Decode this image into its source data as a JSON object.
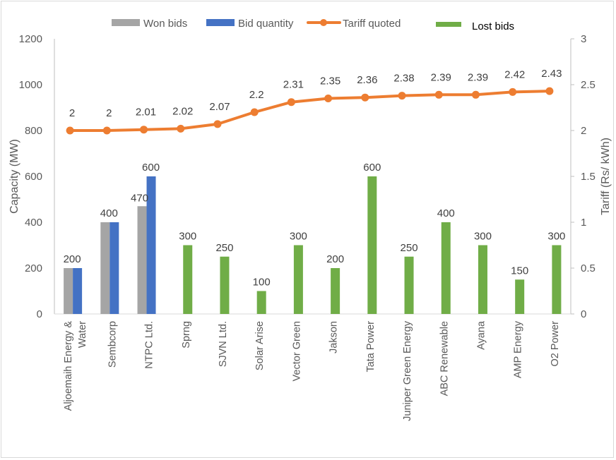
{
  "chart_data": {
    "type": "bar",
    "title": "",
    "categories": [
      "Aljoemaih Energy & Water",
      "Sembcorp",
      "NTPC Ltd.",
      "Sprng",
      "SJVN Ltd.",
      "Solar Arise",
      "Vector Green",
      "Jakson",
      "Tata Power",
      "Juniper Green Energy",
      "ABC Renewable",
      "Ayana",
      "AMP Energy",
      "O2 Power"
    ],
    "category_lines": [
      [
        "Aljoemaih Energy &",
        "Water"
      ],
      [
        "Sembcorp"
      ],
      [
        "NTPC Ltd."
      ],
      [
        "Sprng"
      ],
      [
        "SJVN Ltd."
      ],
      [
        "Solar Arise"
      ],
      [
        "Vector Green"
      ],
      [
        "Jakson"
      ],
      [
        "Tata Power"
      ],
      [
        "Juniper Green Energy"
      ],
      [
        "ABC Renewable"
      ],
      [
        "Ayana"
      ],
      [
        "AMP Energy"
      ],
      [
        "O2 Power"
      ]
    ],
    "series": [
      {
        "name": "Won bids",
        "type": "bar",
        "axis": "left",
        "color": "#a5a5a5",
        "values": [
          200,
          400,
          470,
          null,
          null,
          null,
          null,
          null,
          null,
          null,
          null,
          null,
          null,
          null
        ],
        "labels": [
          "",
          "",
          "470",
          "",
          "",
          "",
          "",
          "",
          "",
          "",
          "",
          "",
          "",
          ""
        ]
      },
      {
        "name": "Bid quantity",
        "type": "bar",
        "axis": "left",
        "color": "#4472c4",
        "values": [
          200,
          400,
          600,
          null,
          null,
          null,
          null,
          null,
          null,
          null,
          null,
          null,
          null,
          null
        ],
        "labels": [
          "200",
          "400",
          "600",
          "",
          "",
          "",
          "",
          "",
          "",
          "",
          "",
          "",
          "",
          ""
        ]
      },
      {
        "name": "Tariff quoted",
        "type": "line",
        "axis": "right",
        "color": "#ed7d31",
        "values": [
          2,
          2,
          2.01,
          2.02,
          2.07,
          2.2,
          2.31,
          2.35,
          2.36,
          2.38,
          2.39,
          2.39,
          2.42,
          2.43
        ],
        "labels": [
          "2",
          "2",
          "2.01",
          "2.02",
          "2.07",
          "2.2",
          "2.31",
          "2.35",
          "2.36",
          "2.38",
          "2.39",
          "2.39",
          "2.42",
          "2.43"
        ]
      },
      {
        "name": "Lost bids",
        "type": "bar",
        "axis": "left",
        "color": "#70ad47",
        "values": [
          null,
          null,
          null,
          300,
          250,
          100,
          300,
          200,
          600,
          250,
          400,
          300,
          150,
          300
        ],
        "labels": [
          "",
          "",
          "",
          "300",
          "250",
          "100",
          "300",
          "200",
          "600",
          "250",
          "400",
          "300",
          "150",
          "300"
        ]
      }
    ],
    "xlabel": "",
    "ylabel": "Capacity (MW)",
    "y2label": "Tariff (Rs/ kWh)",
    "ylim": [
      0,
      1200
    ],
    "y2lim": [
      0,
      3
    ],
    "yticks": [
      "0",
      "200",
      "400",
      "600",
      "800",
      "1000",
      "1200"
    ],
    "y2ticks": [
      "0",
      "0.5",
      "1",
      "1.5",
      "2",
      "2.5",
      "3"
    ],
    "grid": false,
    "legend_position": "top"
  }
}
